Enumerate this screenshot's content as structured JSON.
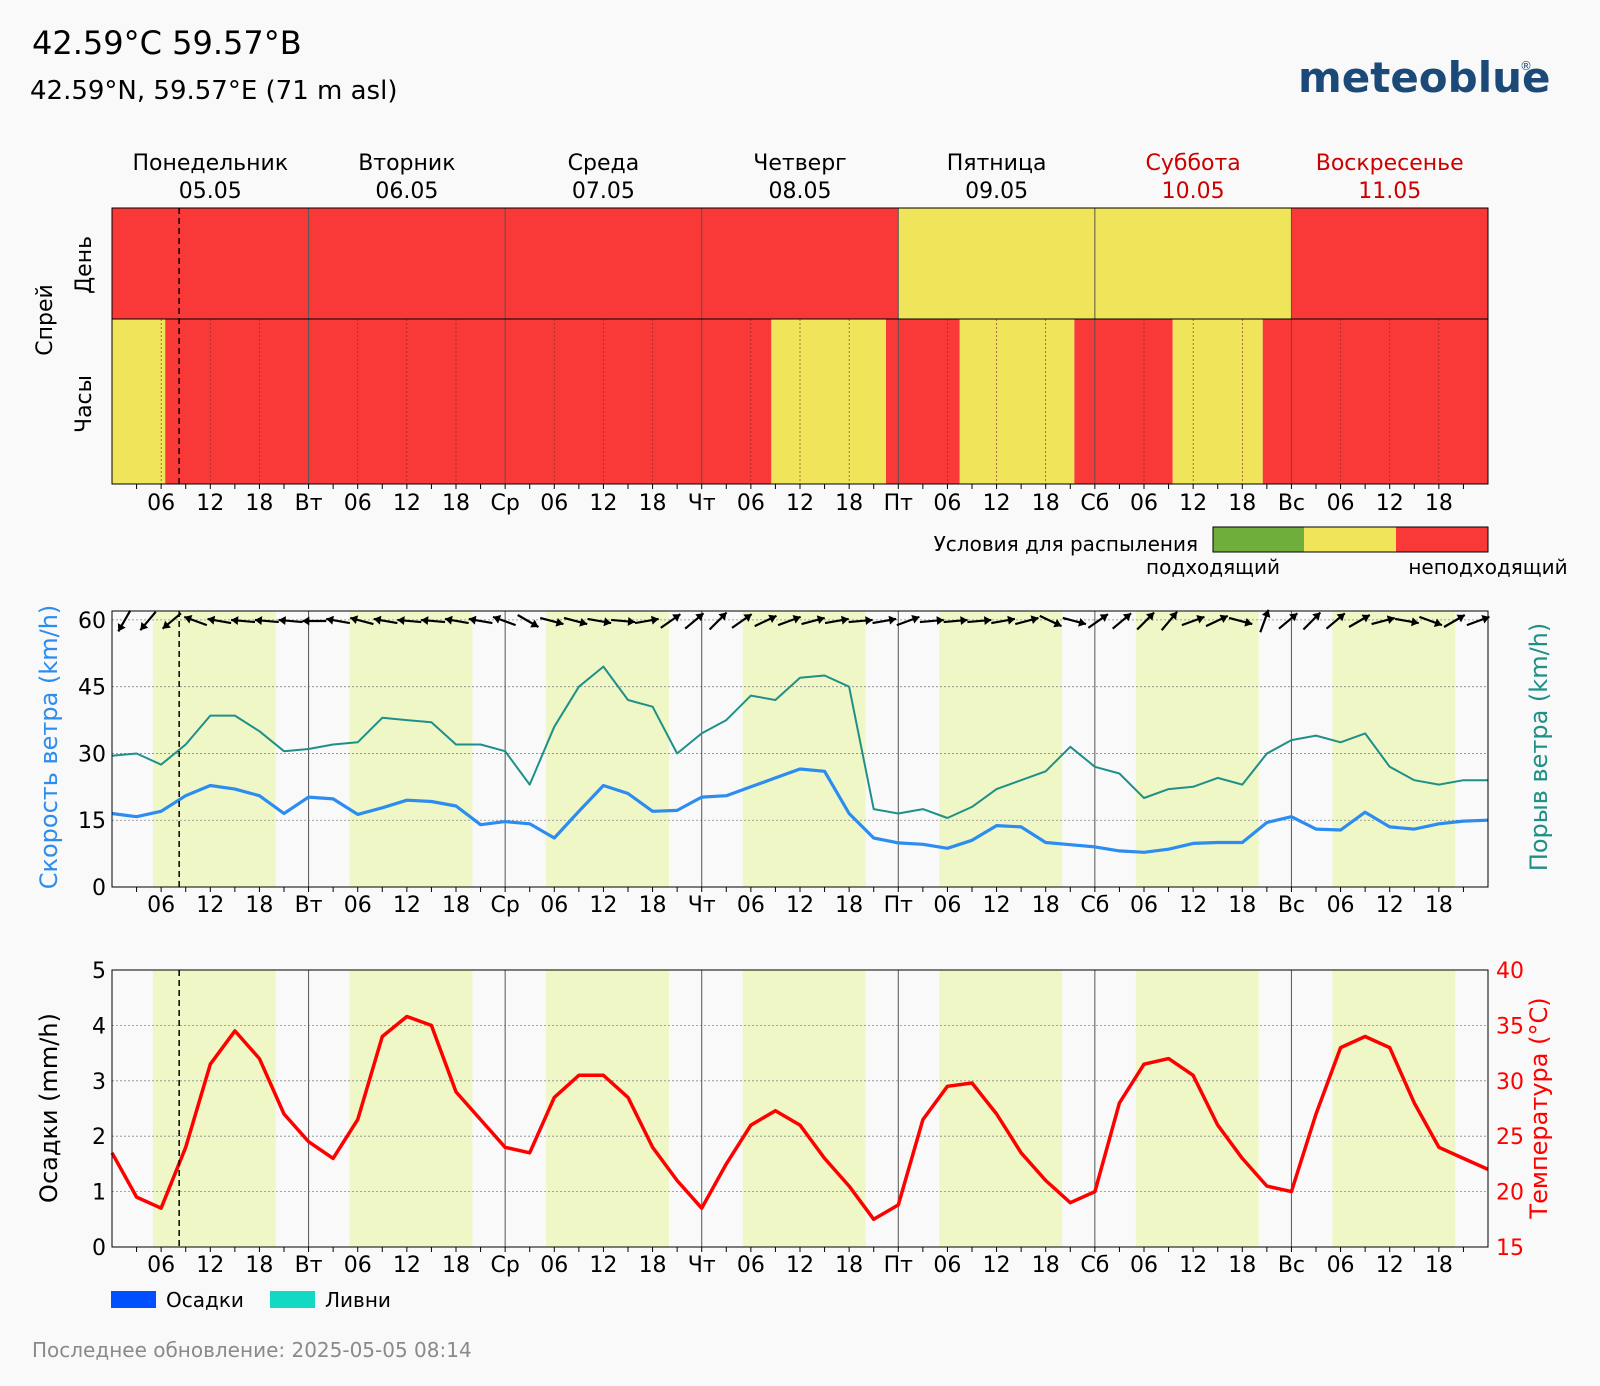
{
  "header": {
    "title": "42.59°C 59.57°B",
    "subtitle": "42.59°N, 59.57°E (71 m asl)",
    "brand": "meteoblue",
    "brand_mark": "®",
    "footer": "Последнее обновление: 2025-05-05 08:14"
  },
  "colors": {
    "red": "#f93838",
    "yellow": "#f0e45a",
    "green": "#6fae3a",
    "day_band": "#f0f7c6",
    "wind": "#2c8cf0",
    "gust": "#1e9088",
    "temperature": "#ff0000",
    "weekend": "#cc0000",
    "brand": "#1b4a78",
    "precip": "#0050ff",
    "showers": "#12d8c4"
  },
  "days": [
    {
      "name": "Понедельник",
      "date": "05.05",
      "weekend": false,
      "abbr": ""
    },
    {
      "name": "Вторник",
      "date": "06.05",
      "weekend": false,
      "abbr": "Вт"
    },
    {
      "name": "Среда",
      "date": "07.05",
      "weekend": false,
      "abbr": "Ср"
    },
    {
      "name": "Четверг",
      "date": "08.05",
      "weekend": false,
      "abbr": "Чт"
    },
    {
      "name": "Пятница",
      "date": "09.05",
      "weekend": false,
      "abbr": "Пт"
    },
    {
      "name": "Суббота",
      "date": "10.05",
      "weekend": true,
      "abbr": "Сб"
    },
    {
      "name": "Воскресенье",
      "date": "11.05",
      "weekend": true,
      "abbr": "Вс"
    }
  ],
  "hour_ticks": [
    "06",
    "12",
    "18"
  ],
  "current_time_hour": 8.2,
  "spray": {
    "ylabel": "Спрей",
    "row_day": "День",
    "row_hours": "Часы",
    "legend_title": "Условия для распыления",
    "legend_low": "подходящий",
    "legend_high": "неподходящий",
    "daily": [
      "red",
      "red",
      "red",
      "red",
      "yellow",
      "yellow",
      "red"
    ],
    "hourly_segments": [
      [
        0,
        6.5,
        "yellow"
      ],
      [
        6.5,
        80.5,
        "red"
      ],
      [
        80.5,
        84,
        "yellow"
      ],
      [
        84,
        94.5,
        "yellow"
      ],
      [
        94.5,
        103.5,
        "red"
      ],
      [
        103.5,
        108,
        "yellow"
      ],
      [
        108,
        117.5,
        "yellow"
      ],
      [
        117.5,
        129.5,
        "red"
      ],
      [
        129.5,
        132,
        "yellow"
      ],
      [
        132,
        140.5,
        "yellow"
      ],
      [
        140.5,
        168,
        "red"
      ]
    ]
  },
  "wind": {
    "ylabel_left": "Скорость ветра (km/h)",
    "ylabel_right": "Порыв ветра (km/h)",
    "ylim": [
      0,
      62
    ],
    "yticks": [
      0,
      15,
      30,
      45,
      60
    ]
  },
  "precip": {
    "ylabel_left": "Осадки (mm/h)",
    "ylabel_right": "Температура (°C)",
    "ylim_left": [
      0,
      5
    ],
    "yticks_left": [
      0,
      1,
      2,
      3,
      4,
      5
    ],
    "ylim_right": [
      15,
      40
    ],
    "yticks_right": [
      15,
      20,
      25,
      30,
      35,
      40
    ],
    "legend": [
      "Осадки",
      "Ливни"
    ]
  },
  "chart_data": [
    {
      "type": "line",
      "x_unit": "hours since 2025-05-05 00:00",
      "series": [
        {
          "name": "Скорость ветра (km/h)",
          "x": [
            0,
            3,
            6,
            9,
            12,
            15,
            18,
            21,
            24,
            27,
            30,
            33,
            36,
            39,
            42,
            45,
            48,
            51,
            54,
            57,
            60,
            63,
            66,
            69,
            72,
            75,
            78,
            81,
            84,
            87,
            90,
            93,
            96,
            99,
            102,
            105,
            108,
            111,
            114,
            117,
            120,
            123,
            126,
            129,
            132,
            135,
            138,
            141,
            144,
            147,
            150,
            153,
            156,
            159,
            162,
            165,
            168
          ],
          "values": [
            16.5,
            15.8,
            17,
            20.5,
            22.8,
            22,
            20.5,
            16.5,
            20.2,
            19.8,
            16.3,
            17.8,
            19.5,
            19.2,
            18.2,
            14,
            14.7,
            14.2,
            11,
            17,
            22.8,
            21,
            17,
            17.2,
            20.2,
            20.5,
            22.5,
            24.5,
            26.5,
            26,
            16.5,
            11,
            9.9,
            9.6,
            8.7,
            10.5,
            13.8,
            13.5,
            10,
            9.5,
            9,
            8.1,
            7.8,
            8.5,
            9.8,
            10,
            10,
            14.5,
            15.8,
            13,
            12.8,
            16.8,
            13.5,
            13,
            14.2,
            14.8,
            15
          ]
        },
        {
          "name": "Порыв ветра (km/h)",
          "x": [
            0,
            3,
            6,
            9,
            12,
            15,
            18,
            21,
            24,
            27,
            30,
            33,
            36,
            39,
            42,
            45,
            48,
            51,
            54,
            57,
            60,
            63,
            66,
            69,
            72,
            75,
            78,
            81,
            84,
            87,
            90,
            93,
            96,
            99,
            102,
            105,
            108,
            111,
            114,
            117,
            120,
            123,
            126,
            129,
            132,
            135,
            138,
            141,
            144,
            147,
            150,
            153,
            156,
            159,
            162,
            165,
            168
          ],
          "values": [
            29.5,
            30,
            27.5,
            32,
            38.5,
            38.5,
            35,
            30.5,
            31,
            32,
            32.5,
            38,
            37.5,
            37,
            32,
            32,
            30.5,
            23,
            36,
            45,
            49.5,
            42,
            40.5,
            30,
            34.5,
            37.5,
            43,
            42,
            47,
            47.5,
            45,
            17.5,
            16.5,
            17.5,
            15.5,
            18,
            22,
            24,
            26,
            31.5,
            27,
            25.5,
            20,
            22,
            22.5,
            24.5,
            23,
            30,
            33,
            34,
            32.5,
            34.5,
            27,
            24,
            23,
            24,
            24
          ]
        }
      ],
      "annotation": "wind direction arrows along top edge"
    },
    {
      "type": "line",
      "x_unit": "hours since 2025-05-05 00:00",
      "series": [
        {
          "name": "Температура (°C)",
          "x": [
            0,
            3,
            6,
            9,
            12,
            15,
            18,
            21,
            24,
            27,
            30,
            33,
            36,
            39,
            42,
            45,
            48,
            51,
            54,
            57,
            60,
            63,
            66,
            69,
            72,
            75,
            78,
            81,
            84,
            87,
            90,
            93,
            96,
            99,
            102,
            105,
            108,
            111,
            114,
            117,
            120,
            123,
            126,
            129,
            132,
            135,
            138,
            141,
            144,
            147,
            150,
            153,
            156,
            159,
            162,
            165,
            168
          ],
          "values": [
            23.5,
            19.5,
            18.5,
            24,
            31.5,
            34.5,
            32,
            27,
            24.5,
            23,
            26.5,
            34,
            35.8,
            35,
            29,
            26.5,
            24,
            23.5,
            28.5,
            30.5,
            30.5,
            28.5,
            24,
            21,
            18.5,
            22.5,
            26,
            27.3,
            26,
            23,
            20.5,
            17.5,
            18.8,
            26.5,
            29.5,
            29.8,
            27,
            23.5,
            21,
            19,
            20,
            28,
            31.5,
            32,
            30.5,
            26,
            23,
            20.5,
            20,
            27,
            33,
            34,
            33,
            28,
            24,
            23,
            22
          ]
        },
        {
          "name": "Осадки",
          "values": []
        },
        {
          "name": "Ливни",
          "values": []
        }
      ]
    }
  ]
}
